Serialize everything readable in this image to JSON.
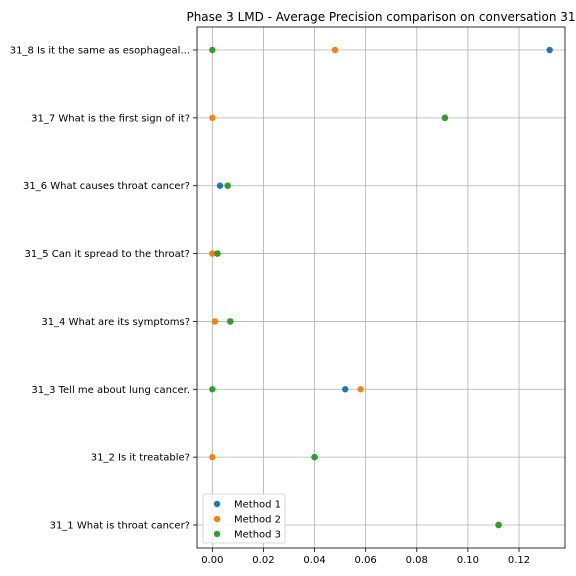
{
  "chart_data": {
    "type": "scatter",
    "title": "Phase 3 LMD - Average Precision comparison on conversation 31",
    "xlabel": "",
    "ylabel": "",
    "xlim": [
      -0.006,
      0.138
    ],
    "x_ticks": [
      0.0,
      0.02,
      0.04,
      0.06,
      0.08,
      0.1,
      0.12
    ],
    "x_tick_labels": [
      "0.00",
      "0.02",
      "0.04",
      "0.06",
      "0.08",
      "0.10",
      "0.12"
    ],
    "categories": [
      "31_1 What is throat cancer?",
      "31_2 Is it treatable?",
      "31_3 Tell me about lung cancer.",
      "31_4 What are its symptoms?",
      "31_5 Can it spread to the throat?",
      "31_6 What causes throat cancer?",
      "31_7 What is the first sign of it?",
      "31_8 Is it the same as esophageal..."
    ],
    "series": [
      {
        "name": "Method 1",
        "color": "#1f77b4",
        "values": [
          0.112,
          0.04,
          0.052,
          0.007,
          0.002,
          0.003,
          0.091,
          0.132
        ]
      },
      {
        "name": "Method 2",
        "color": "#ff7f0e",
        "values": [
          0.112,
          0.0,
          0.058,
          0.001,
          0.0,
          0.006,
          0.0,
          0.048
        ]
      },
      {
        "name": "Method 3",
        "color": "#2ca02c",
        "values": [
          0.112,
          0.04,
          0.0,
          0.007,
          0.002,
          0.006,
          0.091,
          0.0
        ]
      }
    ],
    "grid": true,
    "legend_position": "lower-left"
  }
}
